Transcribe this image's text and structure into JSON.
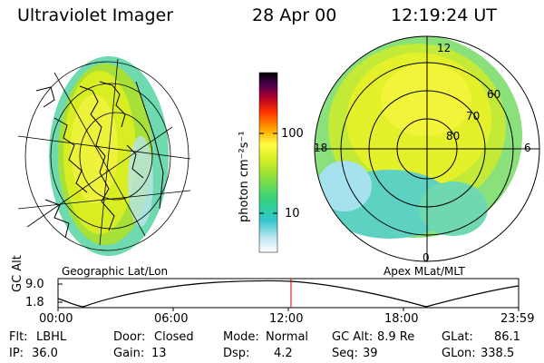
{
  "header": {
    "title": "Ultraviolet Imager",
    "date": "28 Apr 00",
    "time": "12:19:24 UT"
  },
  "colorbar": {
    "unit_label": "photon cm⁻²s⁻¹",
    "ticks": [
      "100",
      "10"
    ],
    "scale": "log"
  },
  "left_panel": {
    "caption": "Geographic Lat/Lon"
  },
  "right_panel": {
    "caption": "Apex MLat/MLT",
    "lat_labels": [
      "60",
      "70",
      "80"
    ],
    "mlt_labels": [
      "12",
      "18",
      "6",
      "0"
    ]
  },
  "altitude_plot": {
    "ylabel": "GC Alt",
    "yticks": [
      "9.0",
      "1.8"
    ],
    "xticks": [
      "00:00",
      "06:00",
      "12:00",
      "18:00",
      "23:59"
    ],
    "marker_time": "12:19",
    "marker_color": "#d00000"
  },
  "status": {
    "row1": [
      {
        "label": "Flt:",
        "value": "LBHL"
      },
      {
        "label": "Door:",
        "value": "Closed"
      },
      {
        "label": "Mode:",
        "value": "Normal"
      },
      {
        "label": "GC Alt:",
        "value": "8.9 Re"
      },
      {
        "label": "GLat:",
        "value": "86.1"
      }
    ],
    "row2": [
      {
        "label": "IP:",
        "value": "36.0"
      },
      {
        "label": "Gain:",
        "value": "13"
      },
      {
        "label": "Dsp:",
        "value": "4.2"
      },
      {
        "label": "Seq:",
        "value": "39"
      },
      {
        "label": "GLon:",
        "value": "338.5"
      }
    ]
  },
  "colors": {
    "palette": [
      "#ffffff",
      "#bfe6f2",
      "#2fc7cc",
      "#36d27a",
      "#8fe03c",
      "#d8ee22",
      "#ffff44",
      "#ffaa00",
      "#ff3300",
      "#b0002a",
      "#500050",
      "#000000"
    ]
  }
}
